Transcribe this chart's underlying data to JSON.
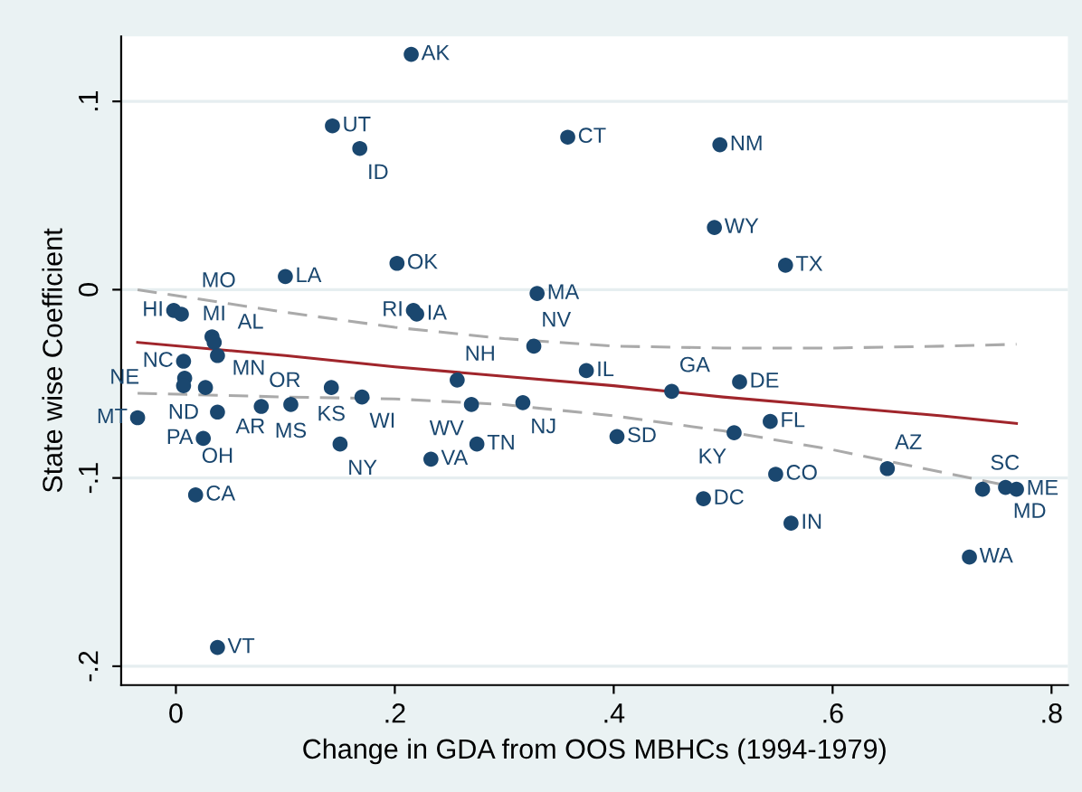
{
  "chart_data": {
    "type": "scatter",
    "xlabel": "Change in GDA from OOS MBHCs (1994-1979)",
    "ylabel": "State wise Coefficient",
    "xlim": [
      -0.05,
      0.815
    ],
    "ylim": [
      -0.21,
      0.1345
    ],
    "xticks": [
      0,
      {
        "value": 0.2,
        "label": ".2"
      },
      {
        "value": 0.4,
        "label": ".4"
      },
      {
        "value": 0.6,
        "label": ".6"
      },
      {
        "value": 0.8,
        "label": ".8"
      }
    ],
    "yticks": [
      {
        "value": -0.2,
        "label": "-.2"
      },
      {
        "value": -0.1,
        "label": "-.1"
      },
      0,
      {
        "value": 0.1,
        "label": ".1"
      }
    ],
    "grid": "y",
    "legend": false,
    "series": [
      {
        "marker": "circle",
        "color": "#1a476f",
        "x": [
          0.215,
          0.143,
          0.168,
          0.358,
          0.497,
          0.492,
          0.557,
          0.202,
          0.1,
          0.33,
          0.217,
          0.22,
          -0.002,
          0.005,
          0.033,
          0.035,
          0.038,
          0.007,
          0.008,
          0.007,
          0.027,
          0.142,
          0.17,
          0.078,
          0.105,
          0.038,
          -0.035,
          0.025,
          0.15,
          0.233,
          0.275,
          0.018,
          0.038,
          0.257,
          0.27,
          0.317,
          0.375,
          0.327,
          0.453,
          0.515,
          0.403,
          0.51,
          0.543,
          0.548,
          0.482,
          0.562,
          0.65,
          0.737,
          0.758,
          0.768,
          0.725
        ],
        "values": [
          0.125,
          0.087,
          0.075,
          0.081,
          0.077,
          0.033,
          0.013,
          0.014,
          0.007,
          -0.002,
          -0.011,
          -0.013,
          -0.011,
          -0.013,
          -0.025,
          -0.028,
          -0.035,
          -0.038,
          -0.047,
          -0.051,
          -0.052,
          -0.052,
          -0.057,
          -0.062,
          -0.061,
          -0.065,
          -0.068,
          -0.079,
          -0.082,
          -0.09,
          -0.082,
          -0.109,
          -0.19,
          -0.048,
          -0.061,
          -0.06,
          -0.043,
          -0.03,
          -0.054,
          -0.049,
          -0.078,
          -0.076,
          -0.07,
          -0.098,
          -0.111,
          -0.124,
          -0.095,
          -0.106,
          -0.105,
          -0.106,
          -0.142
        ]
      },
      {
        "type": "line",
        "marker": "none",
        "color": "#a0252b",
        "line_style": "solid",
        "x": [
          -0.035,
          0.1,
          0.2,
          0.3,
          0.4,
          0.5,
          0.6,
          0.7,
          0.768
        ],
        "values": [
          -0.028,
          -0.035,
          -0.041,
          -0.046,
          -0.051,
          -0.057,
          -0.062,
          -0.067,
          -0.071
        ]
      },
      {
        "type": "line",
        "marker": "none",
        "color": "#aaaaaa",
        "line_style": "dashed",
        "x": [
          -0.035,
          0.1,
          0.2,
          0.3,
          0.4,
          0.5,
          0.6,
          0.7,
          0.768
        ],
        "values": [
          -0.055,
          -0.057,
          -0.058,
          -0.061,
          -0.067,
          -0.075,
          -0.085,
          -0.097,
          -0.105
        ]
      },
      {
        "type": "line",
        "marker": "none",
        "color": "#aaaaaa",
        "line_style": "dashed",
        "x": [
          -0.035,
          0.1,
          0.2,
          0.3,
          0.4,
          0.5,
          0.6,
          0.7,
          0.768
        ],
        "values": [
          0.0,
          -0.012,
          -0.02,
          -0.026,
          -0.03,
          -0.031,
          -0.031,
          -0.03,
          -0.029
        ]
      }
    ],
    "annotations": [
      {
        "text": "AK",
        "x": 0.215,
        "y": 0.125
      },
      {
        "text": "UT",
        "x": 0.143,
        "y": 0.087
      },
      {
        "text": "ID",
        "x": 0.168,
        "y": 0.075
      },
      {
        "text": "CT",
        "x": 0.358,
        "y": 0.081
      },
      {
        "text": "NM",
        "x": 0.497,
        "y": 0.077
      },
      {
        "text": "WY",
        "x": 0.492,
        "y": 0.033
      },
      {
        "text": "TX",
        "x": 0.557,
        "y": 0.013
      },
      {
        "text": "OK",
        "x": 0.202,
        "y": 0.014
      },
      {
        "text": "LA",
        "x": 0.1,
        "y": 0.007
      },
      {
        "text": "MA",
        "x": 0.33,
        "y": -0.002
      },
      {
        "text": "RI",
        "x": 0.217,
        "y": -0.011
      },
      {
        "text": "IA",
        "x": 0.22,
        "y": -0.013
      },
      {
        "text": "HI",
        "x": -0.002,
        "y": -0.011
      },
      {
        "text": "MO",
        "x": 0.005,
        "y": -0.013
      },
      {
        "text": "MN",
        "x": 0.033,
        "y": -0.025
      },
      {
        "text": "MI",
        "x": 0.035,
        "y": -0.028
      },
      {
        "text": "AL",
        "x": 0.038,
        "y": -0.035
      },
      {
        "text": "NC",
        "x": 0.007,
        "y": -0.038
      },
      {
        "text": "NE",
        "x": 0.008,
        "y": -0.047
      },
      {
        "text": "ND",
        "x": 0.007,
        "y": -0.051
      },
      {
        "text": "AR",
        "x": 0.027,
        "y": -0.052
      },
      {
        "text": "KS",
        "x": 0.142,
        "y": -0.052
      },
      {
        "text": "WI",
        "x": 0.17,
        "y": -0.057
      },
      {
        "text": "OR",
        "x": 0.078,
        "y": -0.062
      },
      {
        "text": "MS",
        "x": 0.105,
        "y": -0.061
      },
      {
        "text": "OH",
        "x": 0.038,
        "y": -0.065
      },
      {
        "text": "MT",
        "x": -0.035,
        "y": -0.068
      },
      {
        "text": "PA",
        "x": 0.025,
        "y": -0.079
      },
      {
        "text": "NY",
        "x": 0.15,
        "y": -0.082
      },
      {
        "text": "VA",
        "x": 0.233,
        "y": -0.09
      },
      {
        "text": "TN",
        "x": 0.275,
        "y": -0.082
      },
      {
        "text": "CA",
        "x": 0.018,
        "y": -0.109
      },
      {
        "text": "VT",
        "x": 0.038,
        "y": -0.19
      },
      {
        "text": "NH",
        "x": 0.257,
        "y": -0.048
      },
      {
        "text": "WV",
        "x": 0.27,
        "y": -0.061
      },
      {
        "text": "NJ",
        "x": 0.317,
        "y": -0.06
      },
      {
        "text": "IL",
        "x": 0.375,
        "y": -0.043
      },
      {
        "text": "NV",
        "x": 0.327,
        "y": -0.03
      },
      {
        "text": "GA",
        "x": 0.453,
        "y": -0.054
      },
      {
        "text": "DE",
        "x": 0.515,
        "y": -0.049
      },
      {
        "text": "SD",
        "x": 0.403,
        "y": -0.078
      },
      {
        "text": "KY",
        "x": 0.51,
        "y": -0.076
      },
      {
        "text": "FL",
        "x": 0.543,
        "y": -0.07
      },
      {
        "text": "CO",
        "x": 0.548,
        "y": -0.098
      },
      {
        "text": "DC",
        "x": 0.482,
        "y": -0.111
      },
      {
        "text": "IN",
        "x": 0.562,
        "y": -0.124
      },
      {
        "text": "AZ",
        "x": 0.65,
        "y": -0.095
      },
      {
        "text": "SC",
        "x": 0.737,
        "y": -0.106
      },
      {
        "text": "MD",
        "x": 0.758,
        "y": -0.105
      },
      {
        "text": "ME",
        "x": 0.768,
        "y": -0.106
      },
      {
        "text": "WA",
        "x": 0.725,
        "y": -0.142
      }
    ]
  }
}
